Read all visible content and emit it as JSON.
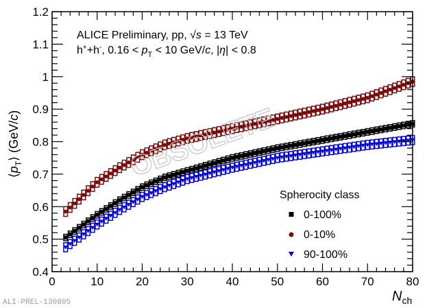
{
  "chart_data": {
    "type": "scatter",
    "title_lines": [
      {
        "parts": [
          "ALICE Preliminary, pp, ",
          "√",
          "s",
          " = 13 TeV"
        ]
      },
      {
        "parts": [
          "h",
          "+",
          "+h",
          "-",
          ", 0.16 < ",
          "p",
          "T",
          " < 10 GeV/",
          "c",
          ", |",
          "η",
          "| < 0.8"
        ]
      }
    ],
    "xlabel": {
      "main": "N",
      "sub": "ch"
    },
    "ylabel": {
      "open": "⟨",
      "p": "p",
      "sub": "T",
      "close": "⟩",
      "unit_prefix": " (GeV/",
      "unit_c": "c",
      "unit_suffix": ")"
    },
    "xlim": [
      0,
      80
    ],
    "ylim": [
      0.4,
      1.2
    ],
    "x_ticks": [
      "0",
      "10",
      "20",
      "30",
      "40",
      "50",
      "60",
      "70",
      "80"
    ],
    "y_ticks": [
      "0.4",
      "0.5",
      "0.6",
      "0.7",
      "0.8",
      "0.9",
      "1",
      "1.1",
      "1.2"
    ],
    "grid": false,
    "legend": {
      "title": "Spherocity class",
      "position": "bottom-right",
      "entries": [
        {
          "label": "0-100%",
          "marker": "square",
          "color": "#000000"
        },
        {
          "label": "0-10%",
          "marker": "circle",
          "color": "#7a0a0a"
        },
        {
          "label": "90-100%",
          "marker": "triangle-down",
          "color": "#0000e0"
        }
      ]
    },
    "x": [
      3,
      4,
      5,
      6,
      7,
      8,
      9,
      10,
      11,
      12,
      13,
      14,
      15,
      16,
      17,
      18,
      19,
      20,
      21,
      22,
      23,
      24,
      25,
      26,
      27,
      28,
      29,
      30,
      31,
      32,
      33,
      34,
      35,
      36,
      37,
      38,
      39,
      40,
      41,
      42,
      43,
      44,
      45,
      46,
      47,
      48,
      49,
      50,
      51,
      52,
      53,
      54,
      55,
      56,
      57,
      58,
      59,
      60,
      61,
      62,
      63,
      64,
      65,
      66,
      67,
      68,
      69,
      70,
      71,
      72,
      73,
      74,
      75,
      76,
      77,
      78,
      79,
      80
    ],
    "series": [
      {
        "name": "0-10%",
        "color": "#7a0a0a",
        "marker": "circle",
        "syst": 0.03,
        "anchors": [
          [
            3,
            0.585
          ],
          [
            5,
            0.61
          ],
          [
            10,
            0.675
          ],
          [
            15,
            0.72
          ],
          [
            20,
            0.76
          ],
          [
            25,
            0.79
          ],
          [
            30,
            0.81
          ],
          [
            40,
            0.84
          ],
          [
            50,
            0.87
          ],
          [
            60,
            0.9
          ],
          [
            70,
            0.935
          ],
          [
            80,
            0.985
          ]
        ]
      },
      {
        "name": "0-100%",
        "color": "#000000",
        "marker": "square",
        "syst": 0.02,
        "anchors": [
          [
            3,
            0.505
          ],
          [
            5,
            0.525
          ],
          [
            10,
            0.575
          ],
          [
            15,
            0.62
          ],
          [
            20,
            0.66
          ],
          [
            25,
            0.69
          ],
          [
            30,
            0.71
          ],
          [
            40,
            0.75
          ],
          [
            50,
            0.78
          ],
          [
            60,
            0.805
          ],
          [
            70,
            0.83
          ],
          [
            80,
            0.855
          ]
        ]
      },
      {
        "name": "90-100%",
        "color": "#0000e0",
        "marker": "triangle-down",
        "syst": 0.028,
        "anchors": [
          [
            3,
            0.475
          ],
          [
            5,
            0.495
          ],
          [
            10,
            0.545
          ],
          [
            15,
            0.59
          ],
          [
            20,
            0.63
          ],
          [
            25,
            0.66
          ],
          [
            30,
            0.685
          ],
          [
            40,
            0.72
          ],
          [
            50,
            0.75
          ],
          [
            60,
            0.77
          ],
          [
            70,
            0.79
          ],
          [
            80,
            0.805
          ]
        ]
      }
    ]
  },
  "watermark": {
    "text": "OBSOLETE",
    "id": "ALI-PREL-130805"
  }
}
